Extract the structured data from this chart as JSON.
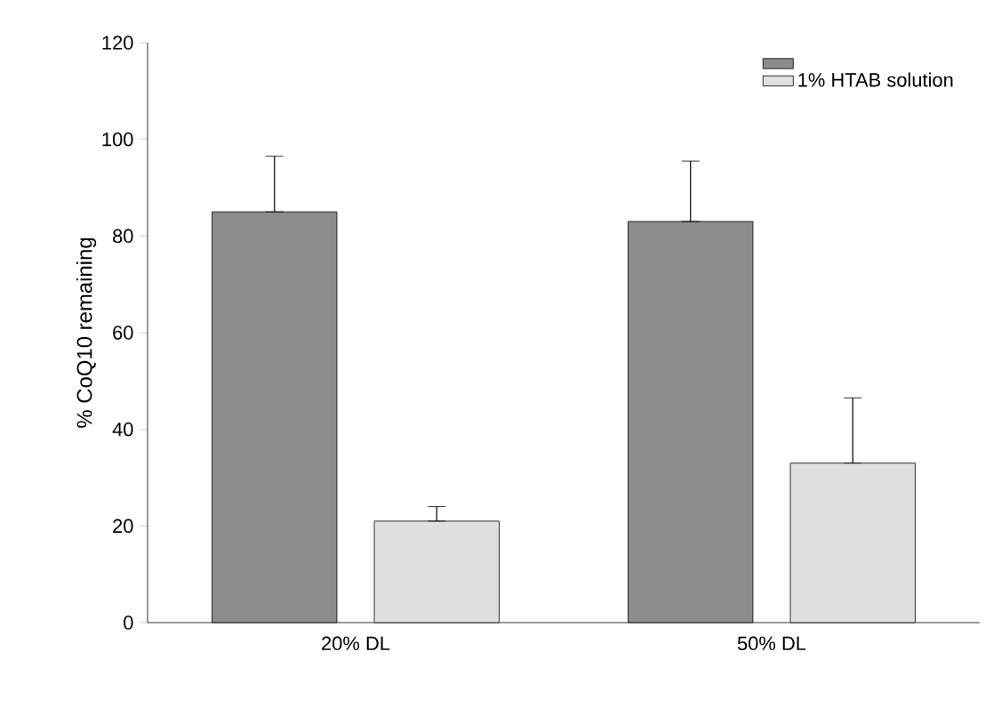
{
  "chart_data": {
    "type": "bar",
    "ylabel": "% CoQ10 remaining",
    "categories": [
      "20% DL",
      "50% DL"
    ],
    "ylim": [
      0,
      120
    ],
    "yticks": [
      0,
      20,
      40,
      60,
      80,
      100,
      120
    ],
    "legend": "top right",
    "grid": false,
    "series": [
      {
        "color": "#8c8c8c",
        "values": [
          85,
          83
        ],
        "errors": [
          [
            85,
            96.5
          ],
          [
            83,
            95.5
          ]
        ]
      },
      {
        "name": "1% HTAB solution",
        "color": "#e0e0e0",
        "values": [
          21,
          33
        ],
        "errors": [
          [
            21,
            24
          ],
          [
            33,
            46.5
          ]
        ]
      }
    ]
  }
}
